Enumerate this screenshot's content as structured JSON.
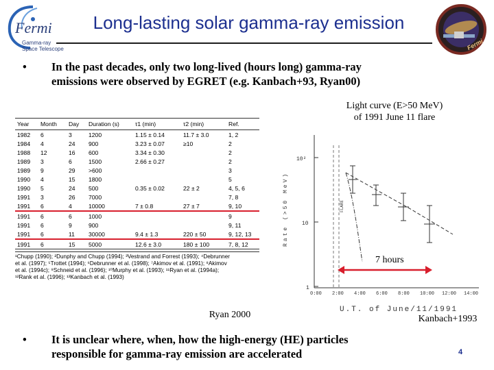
{
  "slide": {
    "title": "Long-lasting solar gamma-ray emission",
    "page_number": "4"
  },
  "logo_left": {
    "wordmark": "Fermi",
    "line1": "Gamma-ray",
    "line2": "Space Telescope"
  },
  "logo_right": {
    "text": "Fermi"
  },
  "bullets": [
    {
      "marker": "•",
      "line1": "In the past decades, only two long-lived (hours long) gamma-ray",
      "line2": "emissions were observed by EGRET (e.g. Kanbach+93, Ryan00)"
    },
    {
      "marker": "•",
      "line1": "It is unclear where, when, how the high-energy (HE) particles",
      "line2": "responsible for gamma-ray emission are accelerated"
    }
  ],
  "table": {
    "headers": [
      "Year",
      "Month",
      "Day",
      "Duration (s)",
      "τ1 (min)",
      "τ2 (min)",
      "Ref."
    ],
    "rows": [
      [
        "1982",
        "6",
        "3",
        "1200",
        "1.15 ± 0.14",
        "11.7 ± 3.0",
        "1, 2"
      ],
      [
        "1984",
        "4",
        "24",
        "900",
        "3.23 ± 0.07",
        "≥10",
        "2"
      ],
      [
        "1988",
        "12",
        "16",
        "600",
        "3.34 ± 0.30",
        "",
        "2"
      ],
      [
        "1989",
        "3",
        "6",
        "1500",
        "2.66 ± 0.27",
        "",
        "2"
      ],
      [
        "1989",
        "9",
        "29",
        ">600",
        "",
        "",
        "3"
      ],
      [
        "1990",
        "4",
        "15",
        "1800",
        "",
        "",
        "5"
      ],
      [
        "1990",
        "5",
        "24",
        "500",
        "0.35 ± 0.02",
        "22 ± 2",
        "4, 5, 6"
      ],
      [
        "1991",
        "3",
        "26",
        "7000",
        "",
        "",
        "7, 8"
      ],
      [
        "1991",
        "6",
        "4",
        "10000",
        "7    ± 0.8",
        "27 ± 7",
        "9, 10"
      ],
      [
        "1991",
        "6",
        "6",
        "1000",
        "",
        "",
        "9"
      ],
      [
        "1991",
        "6",
        "9",
        "900",
        "",
        "",
        "9, 11"
      ],
      [
        "1991",
        "6",
        "11",
        "30000",
        "9.4 ± 1.3",
        "220 ± 50",
        "9, 12, 13"
      ],
      [
        "1991",
        "6",
        "15",
        "5000",
        "12.6 ± 3.0",
        "180 ± 100",
        "7, 8, 12"
      ]
    ],
    "highlight_rows": [
      8,
      11
    ],
    "highlight_color": "#d81e2c",
    "references": [
      "¹Chupp (1990); ²Dunphy and Chupp (1994); ³Vestrand and Forrest (1993); ⁴Debrunner",
      "et al. (1997); ⁵Trottet (1994); ⁶Debrunner et al. (1998); ⁷Akimov et al. (1991); ⁸Akimov",
      "et al. (1994c); ⁹Schneid et al. (1996); ¹⁰Murphy et al. (1993); ¹¹Ryan et al. (1994a);",
      "¹²Rank et al. (1996); ¹³Kanbach et al. (1993)"
    ],
    "caption": "Ryan 2000"
  },
  "lightcurve": {
    "caption_line1": "Light curve (E>50 MeV)",
    "caption_line2": "of 1991 June 11 flare",
    "ylabel": "Rate (>50 MeV)",
    "ytick_top": "10²",
    "ytick_mid": "10",
    "ytick_bottom": "1",
    "xticks": [
      "0:00",
      "2:00",
      "4:00",
      "6:00",
      "8:00",
      "10:00",
      "12:00",
      "14:00"
    ],
    "xlabel": "U.T. of June/11/1991",
    "flare_label": "FLARE",
    "duration_label": "7 hours",
    "duration_color": "#d81e2c",
    "source": "Kanbach+1993"
  }
}
